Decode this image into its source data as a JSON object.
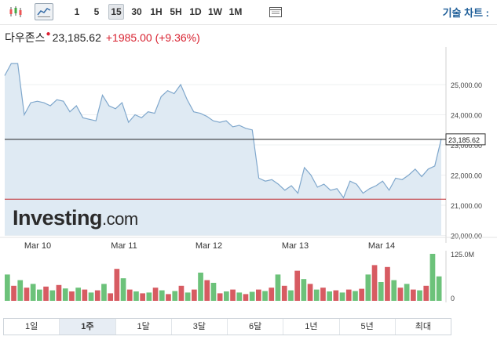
{
  "toolbar": {
    "chart_types": [
      {
        "icon": "candlestick-icon",
        "active": false
      },
      {
        "icon": "area-chart-icon",
        "active": true
      }
    ],
    "intervals": [
      {
        "label": "1",
        "active": false
      },
      {
        "label": "5",
        "active": false
      },
      {
        "label": "15",
        "active": true
      },
      {
        "label": "30",
        "active": false
      },
      {
        "label": "1H",
        "active": false
      },
      {
        "label": "5H",
        "active": false
      },
      {
        "label": "1D",
        "active": false
      },
      {
        "label": "1W",
        "active": false
      },
      {
        "label": "1M",
        "active": false
      }
    ],
    "settings_icon": "calendar-icon",
    "advanced_chart_label": "기술 차트 :"
  },
  "quote": {
    "name": "다우존스",
    "price": "23,185.62",
    "change": "+1985.00",
    "change_pct": "(+9.36%)"
  },
  "chart_data": {
    "type": "area",
    "x_labels": [
      "Mar 10",
      "Mar 11",
      "Mar 12",
      "Mar 13",
      "Mar 14"
    ],
    "y_ticks": [
      "25,000.00",
      "24,000.00",
      "23,000.00",
      "22,000.00",
      "21,000.00",
      "20,000.00"
    ],
    "ylim": [
      20000,
      26000
    ],
    "last_value": 23185.62,
    "last_value_label": "23,185.62",
    "previous_close": 21200,
    "watermark": "Investing.com",
    "volume_axis": [
      "125.0M",
      "0"
    ],
    "colors": {
      "line": "#7fa7cc",
      "area": "#dfeaf3",
      "up": "#6cc27a",
      "down": "#d75b62",
      "prev_close": "#c0282d"
    },
    "series": [
      {
        "name": "price",
        "values": [
          25300,
          25700,
          25700,
          24000,
          24400,
          24450,
          24400,
          24300,
          24500,
          24450,
          24100,
          24300,
          23900,
          23850,
          23800,
          24650,
          24300,
          24200,
          24400,
          23750,
          24000,
          23900,
          24100,
          24050,
          24600,
          24800,
          24700,
          25000,
          24500,
          24100,
          24050,
          23950,
          23800,
          23750,
          23800,
          23600,
          23650,
          23550,
          23500,
          21900,
          21800,
          21850,
          21700,
          21500,
          21650,
          21400,
          22250,
          22000,
          21600,
          21700,
          21500,
          21550,
          21250,
          21800,
          21700,
          21400,
          21550,
          21650,
          21800,
          21500,
          21900,
          21850,
          22000,
          22200,
          21950,
          22200,
          22300,
          23200
        ]
      }
    ],
    "volume": [
      {
        "v": 70,
        "up": true
      },
      {
        "v": 40,
        "up": false
      },
      {
        "v": 55,
        "up": true
      },
      {
        "v": 35,
        "up": false
      },
      {
        "v": 45,
        "up": true
      },
      {
        "v": 30,
        "up": true
      },
      {
        "v": 38,
        "up": false
      },
      {
        "v": 28,
        "up": true
      },
      {
        "v": 42,
        "up": false
      },
      {
        "v": 33,
        "up": true
      },
      {
        "v": 25,
        "up": false
      },
      {
        "v": 35,
        "up": true
      },
      {
        "v": 30,
        "up": false
      },
      {
        "v": 22,
        "up": true
      },
      {
        "v": 28,
        "up": false
      },
      {
        "v": 45,
        "up": true
      },
      {
        "v": 20,
        "up": false
      },
      {
        "v": 85,
        "up": false
      },
      {
        "v": 60,
        "up": true
      },
      {
        "v": 30,
        "up": false
      },
      {
        "v": 25,
        "up": true
      },
      {
        "v": 20,
        "up": false
      },
      {
        "v": 22,
        "up": true
      },
      {
        "v": 35,
        "up": false
      },
      {
        "v": 28,
        "up": true
      },
      {
        "v": 18,
        "up": false
      },
      {
        "v": 26,
        "up": true
      },
      {
        "v": 40,
        "up": false
      },
      {
        "v": 22,
        "up": true
      },
      {
        "v": 30,
        "up": false
      },
      {
        "v": 75,
        "up": true
      },
      {
        "v": 55,
        "up": false
      },
      {
        "v": 48,
        "up": true
      },
      {
        "v": 20,
        "up": false
      },
      {
        "v": 25,
        "up": true
      },
      {
        "v": 30,
        "up": false
      },
      {
        "v": 22,
        "up": true
      },
      {
        "v": 18,
        "up": false
      },
      {
        "v": 24,
        "up": true
      },
      {
        "v": 30,
        "up": false
      },
      {
        "v": 26,
        "up": true
      },
      {
        "v": 35,
        "up": false
      },
      {
        "v": 70,
        "up": true
      },
      {
        "v": 40,
        "up": false
      },
      {
        "v": 28,
        "up": true
      },
      {
        "v": 80,
        "up": false
      },
      {
        "v": 58,
        "up": true
      },
      {
        "v": 45,
        "up": false
      },
      {
        "v": 30,
        "up": true
      },
      {
        "v": 35,
        "up": false
      },
      {
        "v": 25,
        "up": true
      },
      {
        "v": 28,
        "up": false
      },
      {
        "v": 22,
        "up": true
      },
      {
        "v": 30,
        "up": false
      },
      {
        "v": 26,
        "up": true
      },
      {
        "v": 32,
        "up": false
      },
      {
        "v": 70,
        "up": true
      },
      {
        "v": 95,
        "up": false
      },
      {
        "v": 50,
        "up": true
      },
      {
        "v": 90,
        "up": false
      },
      {
        "v": 55,
        "up": true
      },
      {
        "v": 35,
        "up": false
      },
      {
        "v": 45,
        "up": true
      },
      {
        "v": 30,
        "up": false
      },
      {
        "v": 28,
        "up": true
      },
      {
        "v": 40,
        "up": false
      },
      {
        "v": 125,
        "up": true
      },
      {
        "v": 65,
        "up": true
      }
    ]
  },
  "periods": [
    {
      "label": "1일",
      "active": false
    },
    {
      "label": "1주",
      "active": true
    },
    {
      "label": "1달",
      "active": false
    },
    {
      "label": "3달",
      "active": false
    },
    {
      "label": "6달",
      "active": false
    },
    {
      "label": "1년",
      "active": false
    },
    {
      "label": "5년",
      "active": false
    },
    {
      "label": "최대",
      "active": false
    }
  ]
}
